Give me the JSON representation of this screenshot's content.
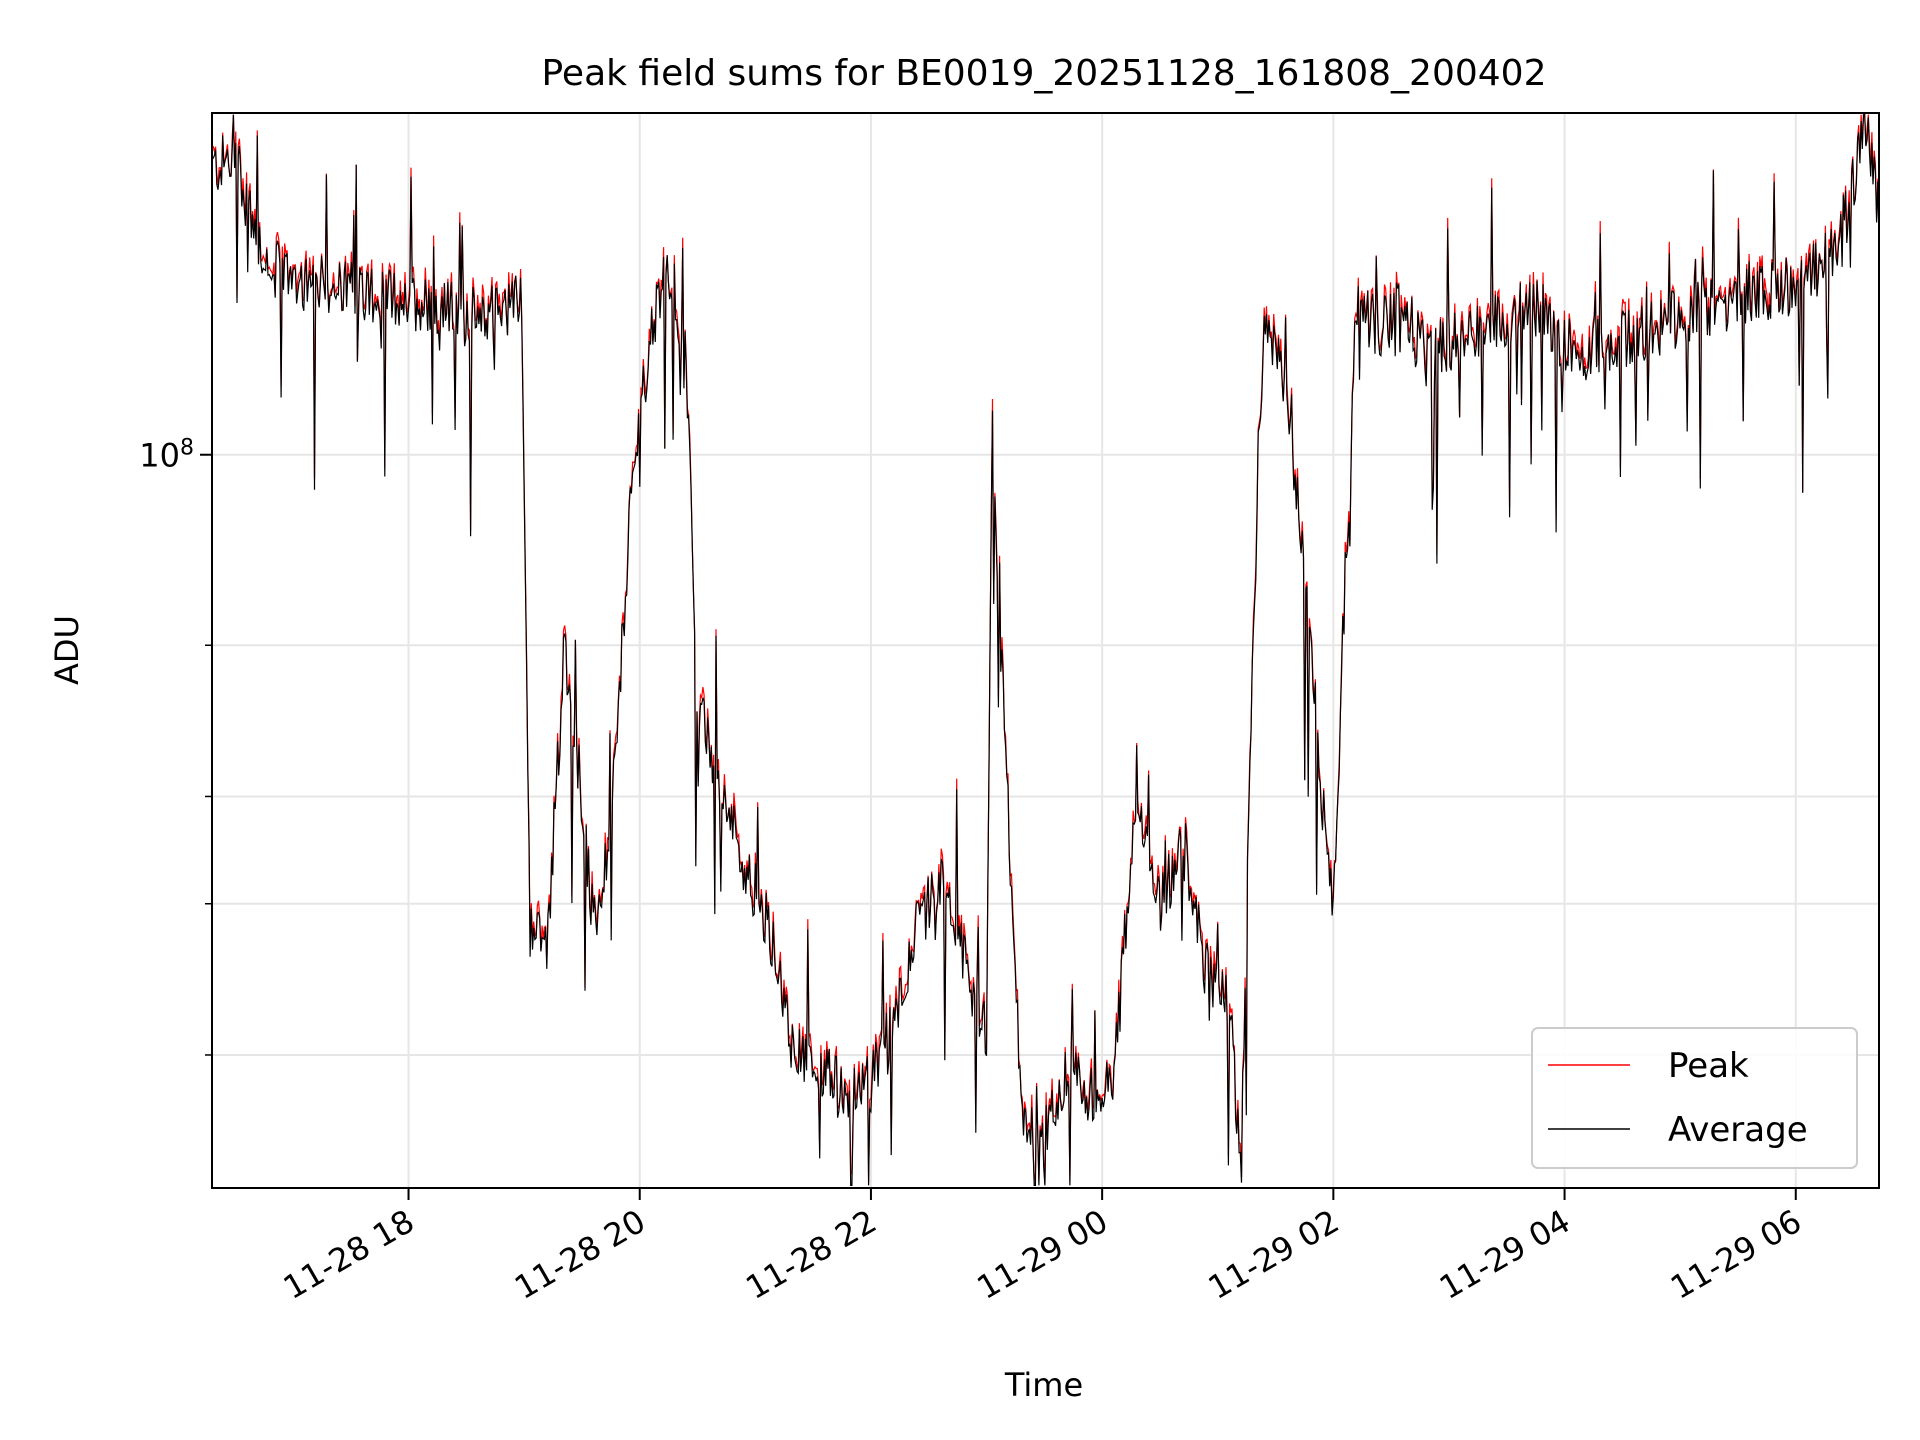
{
  "chart_data": {
    "type": "line",
    "title": "Peak field sums for BE0019_20251128_161808_200402",
    "xlabel": "Time",
    "ylabel": "ADU",
    "yscale": "log",
    "xlim_hours": [
      16.3,
      30.72
    ],
    "ylim": [
      14000000,
      250000000
    ],
    "grid": true,
    "legend_location": "lower right",
    "x_ticks": [
      {
        "value": 18,
        "label": "11-28 18"
      },
      {
        "value": 20,
        "label": "11-28 20"
      },
      {
        "value": 22,
        "label": "11-28 22"
      },
      {
        "value": 24,
        "label": "11-29 00"
      },
      {
        "value": 26,
        "label": "11-29 02"
      },
      {
        "value": 28,
        "label": "11-29 04"
      },
      {
        "value": 30,
        "label": "11-29 06"
      }
    ],
    "y_major_tick": {
      "value": 100000000,
      "label_base": "10",
      "label_exp": "8"
    },
    "y_minor_ticks": [
      20000000,
      30000000,
      40000000,
      60000000
    ],
    "series": [
      {
        "name": "Peak",
        "color": "#ff0000"
      },
      {
        "name": "Average",
        "color": "#000000"
      }
    ],
    "profile": {
      "hours": [
        16.3,
        16.45,
        16.55,
        16.65,
        16.8,
        17.0,
        17.3,
        17.6,
        17.9,
        18.2,
        18.5,
        18.8,
        18.98,
        19.05,
        19.2,
        19.35,
        19.5,
        19.6,
        19.7,
        19.8,
        19.9,
        20.0,
        20.1,
        20.2,
        20.3,
        20.35,
        20.4,
        20.5,
        20.6,
        20.7,
        20.8,
        20.9,
        21.0,
        21.2,
        21.3,
        21.4,
        21.6,
        21.8,
        22.0,
        22.2,
        22.4,
        22.6,
        22.8,
        23.0,
        23.05,
        23.1,
        23.3,
        23.5,
        23.7,
        23.9,
        24.1,
        24.3,
        24.5,
        24.7,
        24.9,
        25.1,
        25.2,
        25.3,
        25.4,
        25.6,
        25.8,
        25.9,
        26.0,
        26.1,
        26.2,
        26.4,
        26.6,
        26.8,
        27.0,
        27.2,
        27.4,
        27.6,
        27.8,
        28.0,
        28.2,
        28.4,
        28.6,
        28.8,
        29.0,
        29.2,
        29.4,
        29.6,
        29.8,
        30.0,
        30.2,
        30.4,
        30.5,
        30.6,
        30.72
      ],
      "values": [
        215000000,
        220000000,
        210000000,
        185000000,
        165000000,
        162000000,
        157000000,
        155000000,
        152000000,
        150000000,
        145000000,
        148000000,
        152000000,
        28000000,
        27000000,
        60000000,
        40000000,
        28000000,
        33000000,
        45000000,
        80000000,
        110000000,
        140000000,
        160000000,
        160000000,
        125000000,
        130000000,
        52000000,
        45000000,
        42000000,
        37000000,
        33000000,
        31000000,
        26000000,
        21000000,
        20000000,
        19000000,
        18000000,
        18500000,
        22000000,
        28000000,
        32000000,
        26000000,
        21000000,
        120000000,
        70000000,
        17000000,
        16000000,
        19000000,
        18000000,
        19000000,
        40000000,
        30000000,
        35000000,
        25000000,
        23000000,
        14500000,
        60000000,
        140000000,
        120000000,
        60000000,
        40000000,
        30000000,
        70000000,
        150000000,
        140000000,
        150000000,
        130000000,
        135000000,
        140000000,
        142000000,
        145000000,
        148000000,
        135000000,
        132000000,
        135000000,
        138000000,
        140000000,
        145000000,
        148000000,
        150000000,
        152000000,
        155000000,
        158000000,
        165000000,
        178000000,
        210000000,
        245000000,
        190000000
      ]
    },
    "n_samples": 1400
  }
}
